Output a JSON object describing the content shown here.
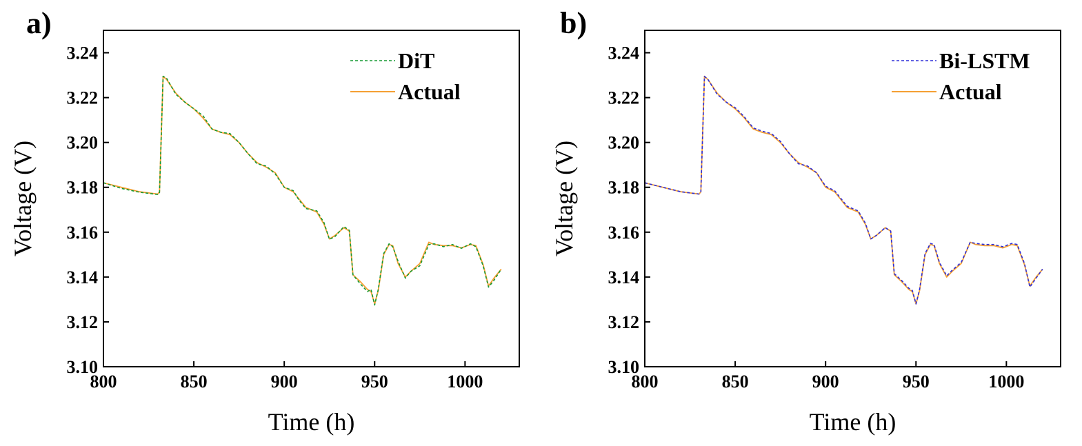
{
  "colors": {
    "actual": "#f5a033",
    "dit": "#169a33",
    "bilstm": "#2f2fd8",
    "axis": "#000000"
  },
  "chart_data": [
    {
      "type": "line",
      "panel_label": "a)",
      "xlabel": "Time (h)",
      "ylabel": "Voltage (V)",
      "xlim": [
        800,
        1030
      ],
      "ylim": [
        3.1,
        3.25
      ],
      "xticks": [
        800,
        850,
        900,
        950,
        1000
      ],
      "yticks": [
        3.1,
        3.12,
        3.14,
        3.16,
        3.18,
        3.2,
        3.22,
        3.24
      ],
      "xtick_labels": [
        "800",
        "850",
        "900",
        "950",
        "1000"
      ],
      "ytick_labels": [
        "3.10",
        "3.12",
        "3.14",
        "3.16",
        "3.18",
        "3.20",
        "3.22",
        "3.24"
      ],
      "legend_position": "top-right",
      "series": [
        {
          "name": "DiT",
          "style": "dashed",
          "color_key": "dit",
          "x": [
            800,
            810,
            820,
            830,
            831,
            833,
            835,
            840,
            845,
            850,
            855,
            860,
            865,
            870,
            875,
            880,
            885,
            890,
            895,
            900,
            905,
            908,
            912,
            918,
            922,
            925,
            928,
            933,
            936,
            938,
            942,
            946,
            948,
            950,
            952,
            955,
            958,
            960,
            963,
            967,
            970,
            975,
            980,
            983,
            988,
            993,
            998,
            1003,
            1006,
            1010,
            1013,
            1016,
            1020
          ],
          "y": [
            3.182,
            3.1795,
            3.1778,
            3.1768,
            3.1775,
            3.2295,
            3.2285,
            3.2215,
            3.218,
            3.215,
            3.212,
            3.206,
            3.2045,
            3.204,
            3.2,
            3.195,
            3.1905,
            3.1895,
            3.186,
            3.18,
            3.1785,
            3.1745,
            3.1705,
            3.1695,
            3.1642,
            3.1568,
            3.158,
            3.1625,
            3.1608,
            3.141,
            3.137,
            3.1335,
            3.1345,
            3.1275,
            3.1345,
            3.1505,
            3.1548,
            3.1535,
            3.147,
            3.1395,
            3.1425,
            3.145,
            3.1545,
            3.1548,
            3.1535,
            3.1545,
            3.1528,
            3.1548,
            3.1535,
            3.145,
            3.1355,
            3.1385,
            3.1435
          ]
        },
        {
          "name": "Actual",
          "style": "solid",
          "color_key": "actual",
          "x": [
            800,
            810,
            820,
            830,
            831,
            833,
            835,
            840,
            845,
            850,
            855,
            860,
            865,
            870,
            875,
            880,
            885,
            890,
            895,
            900,
            905,
            908,
            912,
            918,
            922,
            925,
            928,
            933,
            936,
            938,
            942,
            946,
            948,
            950,
            952,
            955,
            958,
            960,
            963,
            967,
            970,
            975,
            980,
            983,
            988,
            993,
            998,
            1003,
            1006,
            1010,
            1013,
            1016,
            1020
          ],
          "y": [
            3.182,
            3.18,
            3.178,
            3.177,
            3.178,
            3.2295,
            3.228,
            3.222,
            3.218,
            3.215,
            3.211,
            3.206,
            3.2045,
            3.2035,
            3.2,
            3.195,
            3.191,
            3.189,
            3.1865,
            3.18,
            3.178,
            3.175,
            3.171,
            3.169,
            3.1635,
            3.157,
            3.1585,
            3.162,
            3.1605,
            3.141,
            3.138,
            3.1345,
            3.1335,
            3.128,
            3.134,
            3.15,
            3.1545,
            3.154,
            3.146,
            3.14,
            3.1425,
            3.146,
            3.1555,
            3.1545,
            3.154,
            3.154,
            3.153,
            3.1545,
            3.154,
            3.1455,
            3.136,
            3.1395,
            3.1435
          ]
        }
      ]
    },
    {
      "type": "line",
      "panel_label": "b)",
      "xlabel": "Time (h)",
      "ylabel": "Voltage (V)",
      "xlim": [
        800,
        1030
      ],
      "ylim": [
        3.1,
        3.25
      ],
      "xticks": [
        800,
        850,
        900,
        950,
        1000
      ],
      "yticks": [
        3.1,
        3.12,
        3.14,
        3.16,
        3.18,
        3.2,
        3.22,
        3.24
      ],
      "xtick_labels": [
        "800",
        "850",
        "900",
        "950",
        "1000"
      ],
      "ytick_labels": [
        "3.10",
        "3.12",
        "3.14",
        "3.16",
        "3.18",
        "3.20",
        "3.22",
        "3.24"
      ],
      "legend_position": "top-right",
      "series": [
        {
          "name": "Bi-LSTM",
          "style": "dashed",
          "color_key": "bilstm",
          "x": [
            800,
            810,
            820,
            830,
            831,
            833,
            835,
            840,
            845,
            850,
            855,
            860,
            865,
            870,
            875,
            880,
            885,
            890,
            895,
            900,
            905,
            908,
            912,
            918,
            922,
            925,
            928,
            933,
            936,
            938,
            942,
            946,
            948,
            950,
            952,
            955,
            958,
            960,
            963,
            967,
            970,
            975,
            980,
            983,
            988,
            993,
            998,
            1003,
            1006,
            1010,
            1013,
            1016,
            1020
          ],
          "y": [
            3.182,
            3.18,
            3.178,
            3.177,
            3.178,
            3.2295,
            3.228,
            3.2215,
            3.218,
            3.2155,
            3.2115,
            3.2065,
            3.205,
            3.204,
            3.2005,
            3.195,
            3.1905,
            3.1895,
            3.1865,
            3.1805,
            3.1785,
            3.1755,
            3.1715,
            3.1695,
            3.164,
            3.157,
            3.1585,
            3.162,
            3.1605,
            3.1415,
            3.1385,
            3.135,
            3.134,
            3.128,
            3.1345,
            3.1505,
            3.155,
            3.1545,
            3.1465,
            3.1405,
            3.143,
            3.1465,
            3.1555,
            3.155,
            3.1545,
            3.1545,
            3.1535,
            3.155,
            3.1545,
            3.146,
            3.1355,
            3.139,
            3.1435
          ]
        },
        {
          "name": "Actual",
          "style": "solid",
          "color_key": "actual",
          "x": [
            800,
            810,
            820,
            830,
            831,
            833,
            835,
            840,
            845,
            850,
            855,
            860,
            865,
            870,
            875,
            880,
            885,
            890,
            895,
            900,
            905,
            908,
            912,
            918,
            922,
            925,
            928,
            933,
            936,
            938,
            942,
            946,
            948,
            950,
            952,
            955,
            958,
            960,
            963,
            967,
            970,
            975,
            980,
            983,
            988,
            993,
            998,
            1003,
            1006,
            1010,
            1013,
            1016,
            1020
          ],
          "y": [
            3.182,
            3.18,
            3.178,
            3.177,
            3.178,
            3.2295,
            3.228,
            3.222,
            3.218,
            3.215,
            3.211,
            3.206,
            3.2045,
            3.2035,
            3.2,
            3.195,
            3.191,
            3.189,
            3.1865,
            3.18,
            3.178,
            3.175,
            3.171,
            3.169,
            3.1635,
            3.157,
            3.1585,
            3.162,
            3.1605,
            3.141,
            3.138,
            3.1345,
            3.1335,
            3.128,
            3.134,
            3.15,
            3.1545,
            3.154,
            3.146,
            3.14,
            3.1425,
            3.146,
            3.1555,
            3.1545,
            3.154,
            3.154,
            3.153,
            3.1545,
            3.154,
            3.1455,
            3.136,
            3.1395,
            3.1435
          ]
        }
      ]
    }
  ]
}
